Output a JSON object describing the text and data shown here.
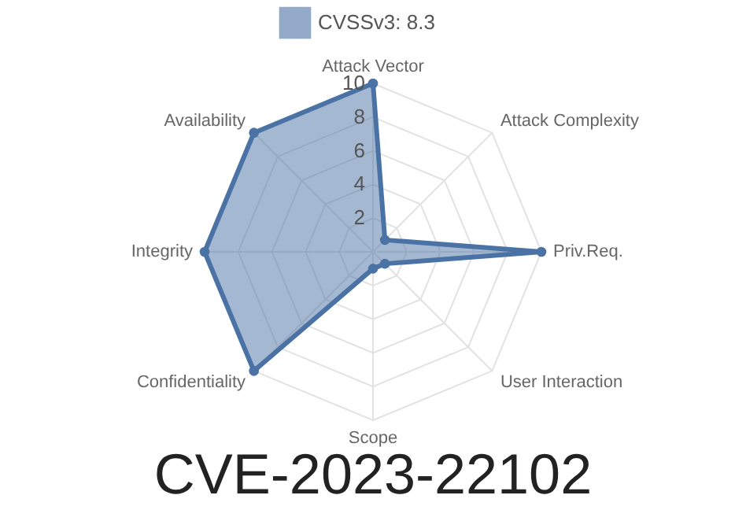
{
  "chart_data": {
    "type": "radar",
    "title": "CVE-2023-22102",
    "categories": [
      "Attack Vector",
      "Attack Complexity",
      "Priv.Req.",
      "User Interaction",
      "Scope",
      "Confidentiality",
      "Integrity",
      "Availability"
    ],
    "series": [
      {
        "name": "CVSSv3: 8.3",
        "color": "#4a72a5",
        "values": [
          10,
          1,
          10,
          1,
          1,
          10,
          10,
          10
        ]
      }
    ],
    "ylim": [
      0,
      10
    ],
    "yticks": [
      2,
      4,
      6,
      8,
      10
    ],
    "grid": true,
    "legend": "top",
    "marker": "circle"
  }
}
